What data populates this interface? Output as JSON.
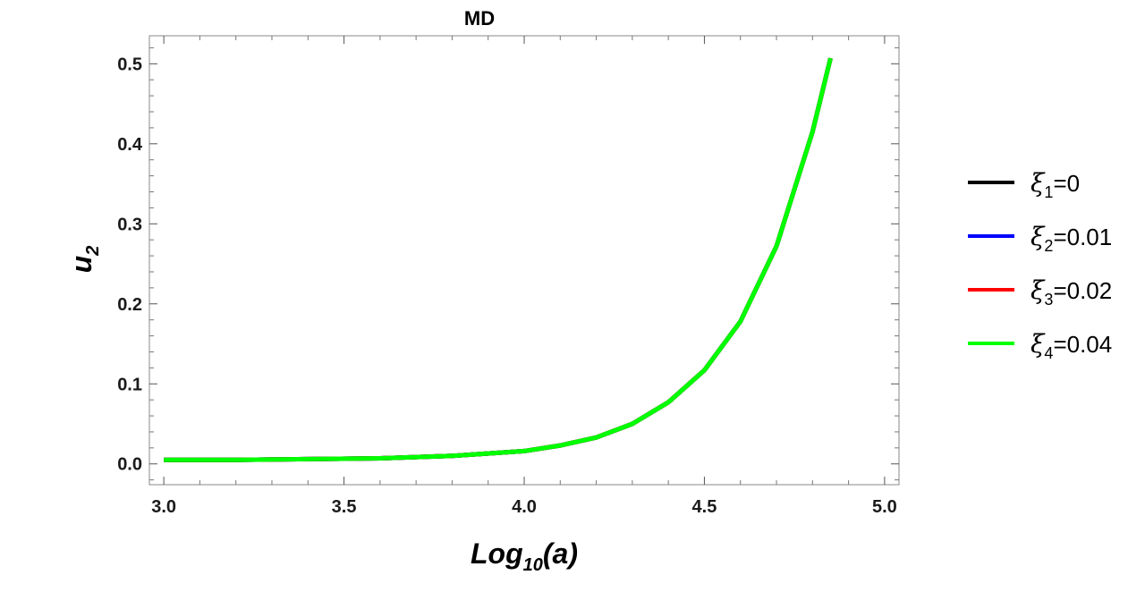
{
  "chart_data": {
    "type": "line",
    "title": "MD",
    "xlabel": {
      "base": "Log",
      "sub": "10",
      "rest": "(a)"
    },
    "ylabel": {
      "base": "u",
      "sub": "2"
    },
    "xlim": [
      2.96,
      5.04
    ],
    "ylim": [
      -0.026,
      0.535
    ],
    "x_ticks": [
      3.0,
      3.5,
      4.0,
      4.5,
      5.0
    ],
    "x_tick_labels": [
      "3.0",
      "3.5",
      "4.0",
      "4.5",
      "5.0"
    ],
    "y_ticks": [
      0.0,
      0.1,
      0.2,
      0.3,
      0.4,
      0.5
    ],
    "y_tick_labels": [
      "0.0",
      "0.1",
      "0.2",
      "0.3",
      "0.4",
      "0.5"
    ],
    "grid": false,
    "legend_position": "right",
    "x": [
      3.0,
      3.2,
      3.4,
      3.6,
      3.8,
      4.0,
      4.1,
      4.2,
      4.3,
      4.4,
      4.5,
      4.6,
      4.7,
      4.8,
      4.85
    ],
    "series": [
      {
        "name": "ξ1=0",
        "label": {
          "sym": "ξ",
          "sub": "1",
          "rest": "=0"
        },
        "color": "#000000",
        "values": [
          0.005,
          0.005,
          0.006,
          0.007,
          0.01,
          0.016,
          0.023,
          0.033,
          0.05,
          0.077,
          0.117,
          0.178,
          0.272,
          0.415,
          0.507
        ]
      },
      {
        "name": "ξ2=0.01",
        "label": {
          "sym": "ξ",
          "sub": "2",
          "rest": "=0.01"
        },
        "color": "#0000ff",
        "values": [
          0.005,
          0.005,
          0.006,
          0.007,
          0.01,
          0.016,
          0.023,
          0.033,
          0.05,
          0.077,
          0.117,
          0.178,
          0.272,
          0.415,
          0.507
        ]
      },
      {
        "name": "ξ3=0.02",
        "label": {
          "sym": "ξ",
          "sub": "3",
          "rest": "=0.02"
        },
        "color": "#ff0000",
        "values": [
          0.005,
          0.005,
          0.006,
          0.007,
          0.01,
          0.016,
          0.023,
          0.033,
          0.05,
          0.077,
          0.117,
          0.178,
          0.272,
          0.415,
          0.507
        ]
      },
      {
        "name": "ξ4=0.04",
        "label": {
          "sym": "ξ",
          "sub": "4",
          "rest": "=0.04"
        },
        "color": "#00ff00",
        "values": [
          0.005,
          0.005,
          0.006,
          0.007,
          0.01,
          0.016,
          0.023,
          0.033,
          0.05,
          0.077,
          0.117,
          0.178,
          0.272,
          0.415,
          0.507
        ]
      }
    ]
  }
}
